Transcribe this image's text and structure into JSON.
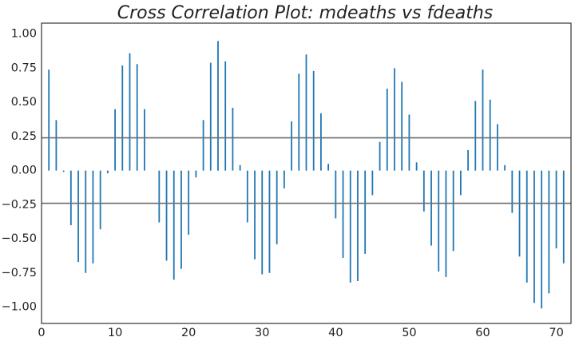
{
  "chart_data": {
    "type": "bar",
    "title": "Cross Correlation Plot: mdeaths vs fdeaths",
    "xlabel": "",
    "ylabel": "",
    "xlim": [
      0,
      72
    ],
    "ylim": [
      -1.12,
      1.08
    ],
    "x_ticks": [
      0,
      10,
      20,
      30,
      40,
      50,
      60,
      70
    ],
    "y_ticks": [
      1.0,
      0.75,
      0.5,
      0.25,
      0.0,
      -0.25,
      -0.5,
      -0.75,
      -1.0
    ],
    "y_tick_labels": [
      "1.00",
      "0.75",
      "0.50",
      "0.25",
      "0.00",
      "−0.25",
      "−0.50",
      "−0.75",
      "−1.00"
    ],
    "confidence_lines": [
      0.24,
      -0.24
    ],
    "grid": false,
    "colors": {
      "bars": "#1f77b4",
      "confidence": "#6f6f6f",
      "axes": "#333333"
    },
    "x": [
      1,
      2,
      3,
      4,
      5,
      6,
      7,
      8,
      9,
      10,
      11,
      12,
      13,
      14,
      15,
      16,
      17,
      18,
      19,
      20,
      21,
      22,
      23,
      24,
      25,
      26,
      27,
      28,
      29,
      30,
      31,
      32,
      33,
      34,
      35,
      36,
      37,
      38,
      39,
      40,
      41,
      42,
      43,
      44,
      45,
      46,
      47,
      48,
      49,
      50,
      51,
      52,
      53,
      54,
      55,
      56,
      57,
      58,
      59,
      60,
      61,
      62,
      63,
      64,
      65,
      66,
      67,
      68,
      69,
      70,
      71
    ],
    "values": [
      0.74,
      0.37,
      -0.01,
      -0.4,
      -0.67,
      -0.75,
      -0.68,
      -0.43,
      -0.02,
      0.45,
      0.77,
      0.86,
      0.78,
      0.45,
      0.0,
      -0.38,
      -0.66,
      -0.8,
      -0.72,
      -0.47,
      -0.05,
      0.37,
      0.79,
      0.95,
      0.8,
      0.46,
      0.04,
      -0.38,
      -0.65,
      -0.76,
      -0.75,
      -0.54,
      -0.13,
      0.36,
      0.71,
      0.85,
      0.73,
      0.42,
      0.05,
      -0.35,
      -0.64,
      -0.82,
      -0.81,
      -0.61,
      -0.18,
      0.21,
      0.6,
      0.75,
      0.65,
      0.41,
      0.06,
      -0.3,
      -0.55,
      -0.74,
      -0.78,
      -0.59,
      -0.18,
      0.15,
      0.51,
      0.74,
      0.52,
      0.34,
      0.04,
      -0.31,
      -0.63,
      -0.82,
      -0.97,
      -1.01,
      -0.9,
      -0.57,
      -0.68
    ]
  }
}
